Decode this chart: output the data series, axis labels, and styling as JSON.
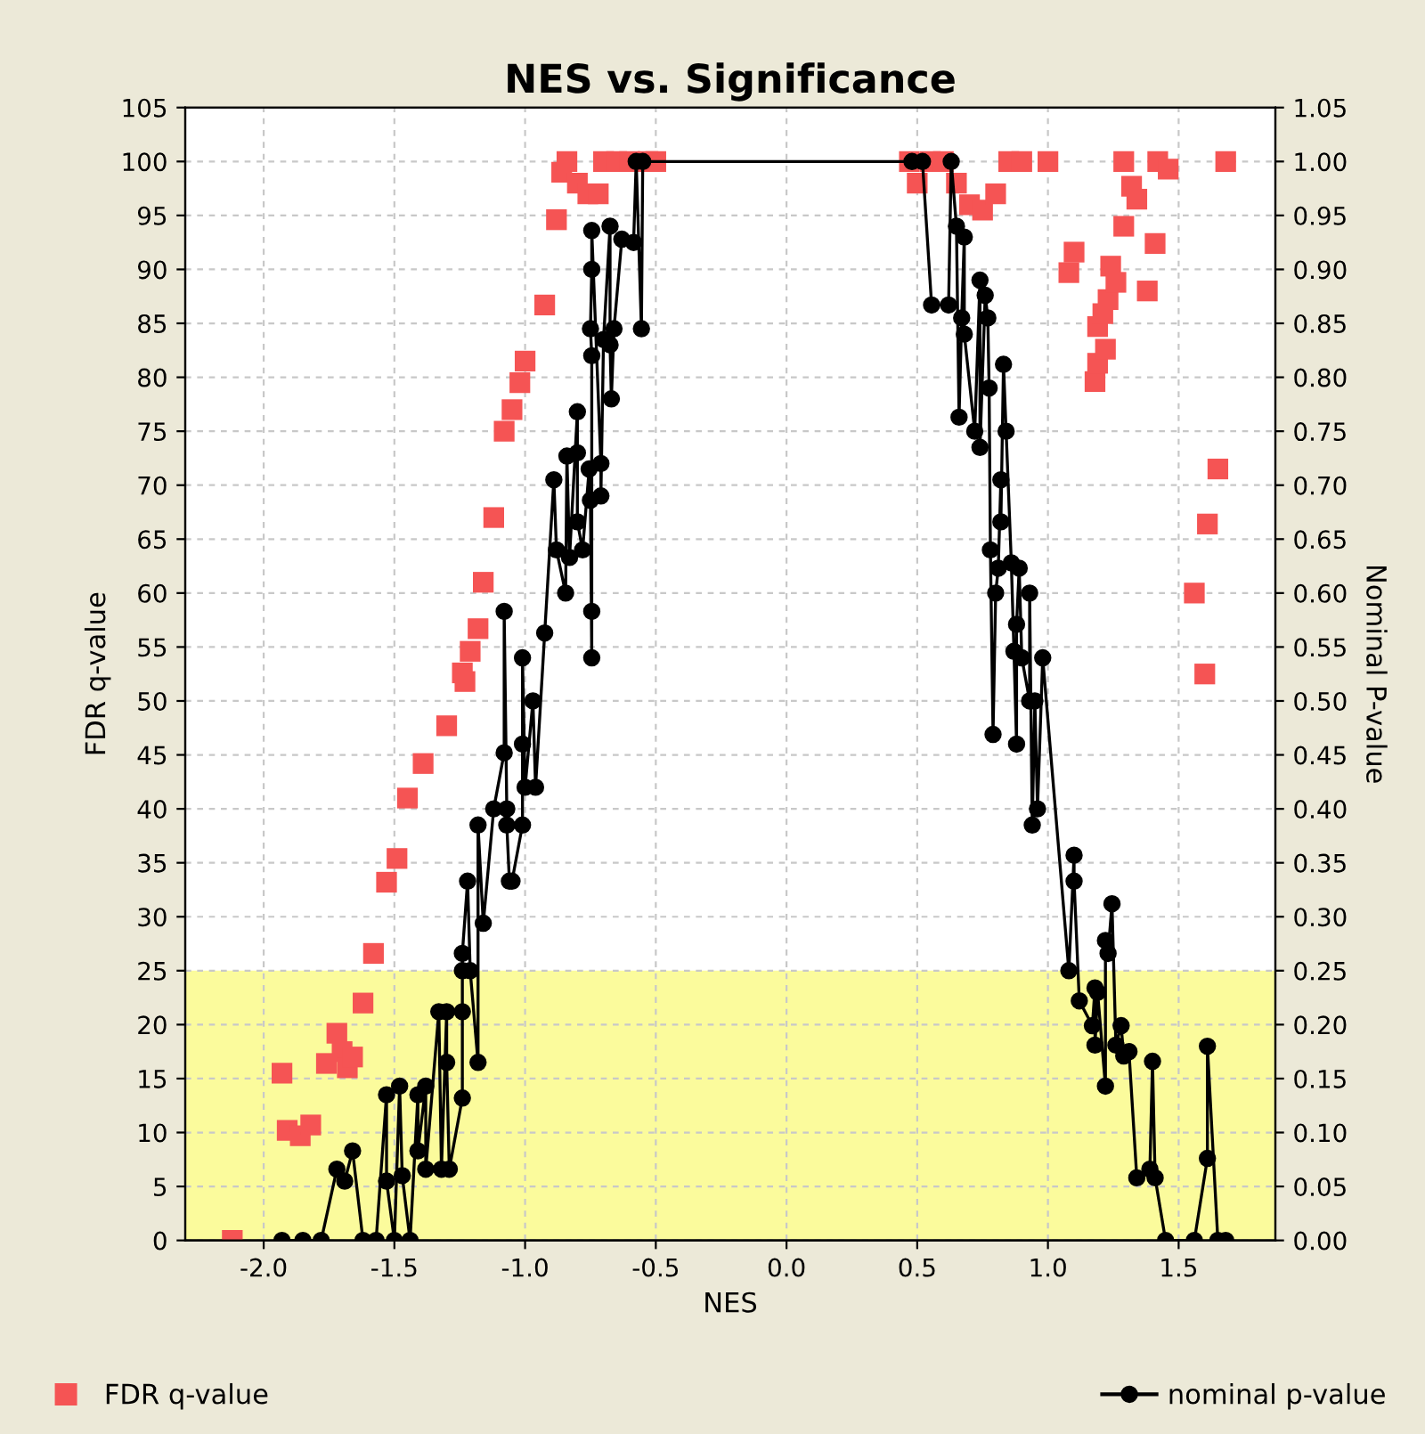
{
  "chart_data": {
    "type": "scatter",
    "title": "NES vs. Significance",
    "xlabel": "NES",
    "ylabel": "FDR q-value",
    "y2label": "Nominal P-value",
    "xlim": [
      -2.3,
      1.87
    ],
    "xticks": [
      {
        "value": -2,
        "label": "-2.0"
      },
      {
        "value": -1.5,
        "label": "-1.5"
      },
      {
        "value": -1,
        "label": "-1.0"
      },
      {
        "value": -0.5,
        "label": "-0.5"
      },
      {
        "value": 0,
        "label": "0.0"
      },
      {
        "value": 0.5,
        "label": "0.5"
      },
      {
        "value": 1,
        "label": "1.0"
      },
      {
        "value": 1.5,
        "label": "1.5"
      }
    ],
    "ylim": [
      0,
      105
    ],
    "yticks": [
      0,
      5,
      10,
      15,
      20,
      25,
      30,
      35,
      40,
      45,
      50,
      55,
      60,
      65,
      70,
      75,
      80,
      85,
      90,
      95,
      100,
      105
    ],
    "y2lim": [
      0,
      1.05
    ],
    "y2ticks": [
      {
        "value": 0,
        "label": "0.00"
      },
      {
        "value": 0.05,
        "label": "0.05"
      },
      {
        "value": 0.1,
        "label": "0.10"
      },
      {
        "value": 0.15,
        "label": "0.15"
      },
      {
        "value": 0.2,
        "label": "0.20"
      },
      {
        "value": 0.25,
        "label": "0.25"
      },
      {
        "value": 0.3,
        "label": "0.30"
      },
      {
        "value": 0.35,
        "label": "0.35"
      },
      {
        "value": 0.4,
        "label": "0.40"
      },
      {
        "value": 0.45,
        "label": "0.45"
      },
      {
        "value": 0.5,
        "label": "0.50"
      },
      {
        "value": 0.55,
        "label": "0.55"
      },
      {
        "value": 0.6,
        "label": "0.60"
      },
      {
        "value": 0.65,
        "label": "0.65"
      },
      {
        "value": 0.7,
        "label": "0.70"
      },
      {
        "value": 0.75,
        "label": "0.75"
      },
      {
        "value": 0.8,
        "label": "0.80"
      },
      {
        "value": 0.85,
        "label": "0.85"
      },
      {
        "value": 0.9,
        "label": "0.90"
      },
      {
        "value": 0.95,
        "label": "0.95"
      },
      {
        "value": 1,
        "label": "1.00"
      },
      {
        "value": 1.05,
        "label": "1.05"
      }
    ],
    "grid": true,
    "legend": "bottom",
    "bands": [
      {
        "axis": "y",
        "from": 0,
        "to": 25,
        "color": "#fbfb9c"
      }
    ],
    "series": [
      {
        "name": "FDR q-value",
        "marker": "square",
        "color": "#f55454",
        "x": [
          -2.12,
          -1.93,
          -1.91,
          -1.86,
          -1.82,
          -1.76,
          -1.72,
          -1.7,
          -1.68,
          -1.66,
          -1.62,
          -1.58,
          -1.53,
          -1.49,
          -1.45,
          -1.39,
          -1.3,
          -1.23,
          -1.24,
          -1.21,
          -1.18,
          -1.16,
          -1.12,
          -1.08,
          -1.05,
          -1.02,
          -1.0,
          -0.925,
          -0.88,
          -0.86,
          -0.84,
          -0.8,
          -0.76,
          -0.72,
          -0.7,
          -0.65,
          -0.6,
          -0.53,
          -0.5,
          0.47,
          0.5,
          0.55,
          0.6,
          0.65,
          0.7,
          0.75,
          0.8,
          0.85,
          0.9,
          1.0,
          1.08,
          1.1,
          1.18,
          1.19,
          1.22,
          1.19,
          1.21,
          1.23,
          1.24,
          1.26,
          1.29,
          1.29,
          1.32,
          1.34,
          1.38,
          1.41,
          1.42,
          1.46,
          1.56,
          1.6,
          1.61,
          1.65,
          1.68
        ],
        "values": [
          0,
          15.5,
          10.2,
          9.7,
          10.7,
          16.4,
          19.2,
          17.5,
          16,
          17,
          22,
          26.6,
          33.2,
          35.4,
          41,
          44.2,
          47.7,
          51.8,
          52.6,
          54.6,
          56.7,
          61,
          67,
          75,
          77,
          79.5,
          81.5,
          86.7,
          94.6,
          99,
          100,
          98,
          97,
          97,
          100,
          100,
          100,
          100,
          100,
          100,
          98,
          100,
          100,
          98,
          96,
          95.5,
          97,
          100,
          100,
          100,
          89.7,
          91.6,
          79.6,
          81.3,
          82.6,
          84.7,
          85.9,
          87.2,
          90.3,
          88.8,
          94,
          100,
          97.7,
          96.5,
          88,
          92.4,
          100,
          99.3,
          60,
          52.5,
          66.4,
          71.5,
          100
        ]
      },
      {
        "name": "nominal p-value",
        "type": "line",
        "marker": "circle",
        "color": "#000000",
        "axis": "y2",
        "x": [
          -1.93,
          -1.85,
          -1.78,
          -1.72,
          -1.69,
          -1.66,
          -1.62,
          -1.57,
          -1.53,
          -1.53,
          -1.5,
          -1.48,
          -1.47,
          -1.44,
          -1.41,
          -1.41,
          -1.38,
          -1.38,
          -1.33,
          -1.32,
          -1.3,
          -1.3,
          -1.29,
          -1.24,
          -1.24,
          -1.24,
          -1.24,
          -1.22,
          -1.21,
          -1.18,
          -1.18,
          -1.16,
          -1.12,
          -1.08,
          -1.08,
          -1.07,
          -1.07,
          -1.06,
          -1.05,
          -1.01,
          -1.01,
          -1.01,
          -1.0,
          -0.97,
          -0.96,
          -0.925,
          -0.89,
          -0.88,
          -0.845,
          -0.84,
          -0.83,
          -0.8,
          -0.8,
          -0.8,
          -0.78,
          -0.755,
          -0.75,
          -0.745,
          -0.745,
          -0.745,
          -0.75,
          -0.745,
          -0.745,
          -0.71,
          -0.71,
          -0.7,
          -0.675,
          -0.675,
          -0.67,
          -0.66,
          -0.63,
          -0.585,
          -0.575,
          -0.555,
          -0.55,
          0.48,
          0.52,
          0.555,
          0.62,
          0.63,
          0.65,
          0.66,
          0.67,
          0.68,
          0.68,
          0.72,
          0.74,
          0.74,
          0.76,
          0.77,
          0.775,
          0.78,
          0.79,
          0.8,
          0.81,
          0.82,
          0.82,
          0.83,
          0.84,
          0.86,
          0.87,
          0.88,
          0.88,
          0.89,
          0.9,
          0.93,
          0.93,
          0.94,
          0.95,
          0.96,
          0.98,
          1.08,
          1.1,
          1.1,
          1.12,
          1.17,
          1.18,
          1.18,
          1.19,
          1.22,
          1.22,
          1.23,
          1.245,
          1.26,
          1.28,
          1.29,
          1.31,
          1.34,
          1.39,
          1.4,
          1.41,
          1.45,
          1.56,
          1.61,
          1.61,
          1.65,
          1.68
        ],
        "values": [
          0,
          0,
          0,
          0.066,
          0.055,
          0.083,
          0,
          0,
          0.135,
          0.055,
          0,
          0.143,
          0.06,
          0,
          0.135,
          0.083,
          0.143,
          0.066,
          0.212,
          0.066,
          0.212,
          0.165,
          0.066,
          0.132,
          0.212,
          0.25,
          0.266,
          0.333,
          0.25,
          0.165,
          0.385,
          0.294,
          0.4,
          0.452,
          0.583,
          0.4,
          0.385,
          0.333,
          0.333,
          0.385,
          0.46,
          0.54,
          0.42,
          0.5,
          0.42,
          0.563,
          0.705,
          0.64,
          0.6,
          0.727,
          0.633,
          0.768,
          0.73,
          0.666,
          0.64,
          0.715,
          0.686,
          0.54,
          0.583,
          0.82,
          0.845,
          0.9,
          0.936,
          0.72,
          0.69,
          0.835,
          0.94,
          0.83,
          0.78,
          0.845,
          0.928,
          0.925,
          1.0,
          0.845,
          1.0,
          1.0,
          1.0,
          0.867,
          0.867,
          1.0,
          0.94,
          0.763,
          0.855,
          0.93,
          0.84,
          0.75,
          0.89,
          0.735,
          0.876,
          0.855,
          0.79,
          0.64,
          0.469,
          0.6,
          0.623,
          0.705,
          0.666,
          0.812,
          0.75,
          0.628,
          0.546,
          0.46,
          0.571,
          0.623,
          0.54,
          0.5,
          0.6,
          0.385,
          0.5,
          0.4,
          0.54,
          0.25,
          0.357,
          0.333,
          0.222,
          0.199,
          0.234,
          0.181,
          0.23,
          0.143,
          0.278,
          0.266,
          0.312,
          0.181,
          0.199,
          0.171,
          0.175,
          0.058,
          0.066,
          0.166,
          0.058,
          0,
          0,
          0.076,
          0.18,
          0,
          0
        ]
      }
    ]
  }
}
